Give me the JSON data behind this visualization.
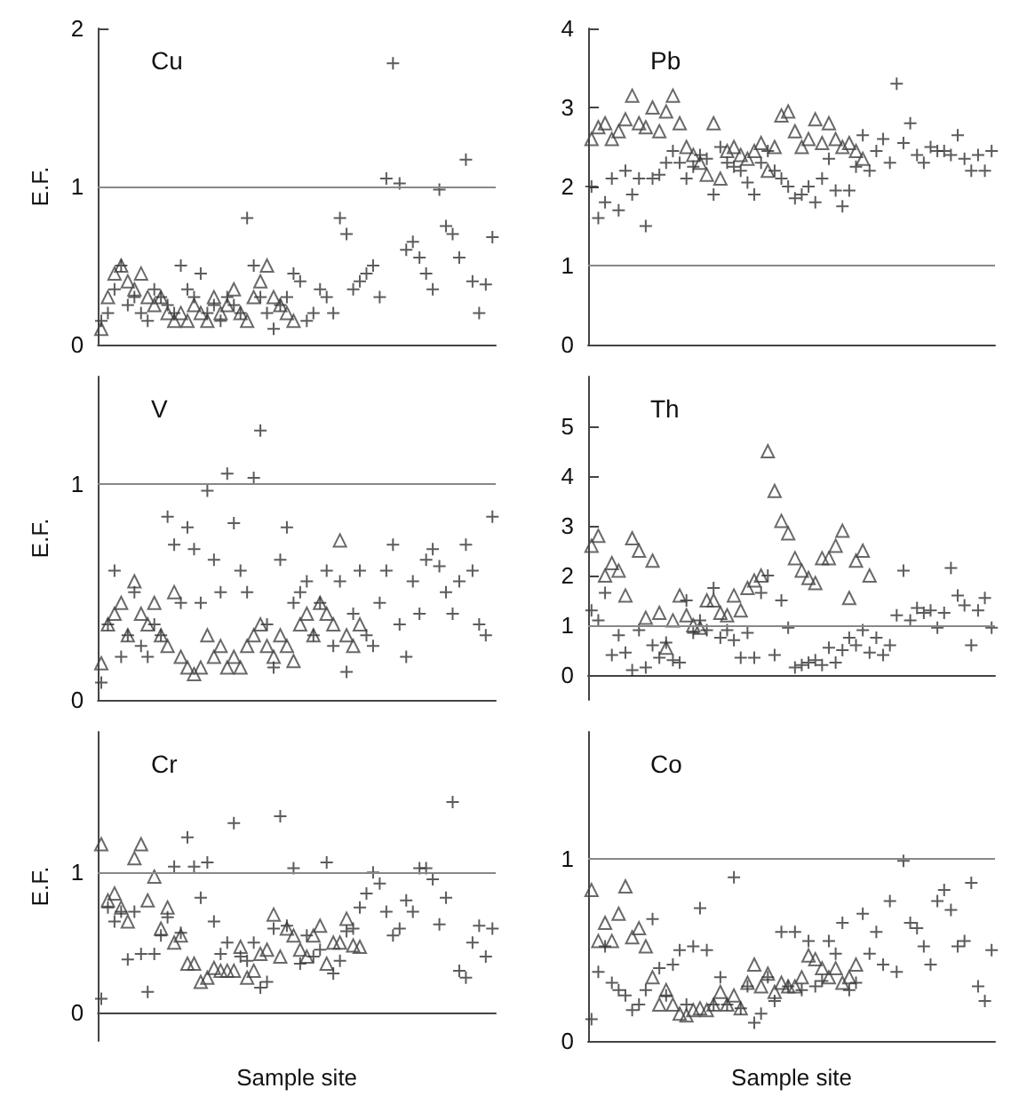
{
  "chart_data": [
    {
      "type": "scatter",
      "title": "Cu",
      "ylabel": "E.F.",
      "categories": [
        null,
        null,
        null,
        null,
        null,
        null,
        null,
        null,
        null,
        null,
        null,
        null,
        null,
        null,
        null,
        null,
        null,
        null,
        null,
        null,
        null,
        null,
        null,
        null,
        null,
        null,
        null,
        null,
        null,
        null,
        null,
        null,
        null,
        null,
        null,
        null,
        null,
        null,
        null,
        null,
        null,
        null,
        null,
        null,
        null,
        null,
        null,
        null,
        null,
        null,
        null,
        null,
        null,
        null,
        null,
        null,
        null,
        null,
        null,
        null
      ],
      "ylim": [
        0,
        2
      ],
      "yticks": [
        0,
        1,
        2
      ],
      "tick_labels": "y",
      "grid": false,
      "ref_lines": [
        {
          "axis": "y",
          "value": 1,
          "color": "#888888"
        }
      ],
      "series": [
        {
          "marker": "triangle",
          "color": "#444444",
          "values": [
            0.1,
            0.3,
            0.45,
            0.5,
            0.4,
            0.35,
            0.45,
            0.3,
            0.25,
            0.3,
            0.2,
            0.15,
            0.2,
            0.15,
            0.25,
            0.2,
            0.15,
            0.3,
            0.2,
            0.25,
            0.35,
            0.2,
            0.15,
            0.3,
            0.4,
            0.5,
            0.3,
            0.25,
            0.2,
            0.15,
            null,
            null,
            null,
            null,
            null,
            null,
            null,
            null,
            null,
            null,
            null,
            null,
            null,
            null,
            null,
            null,
            null,
            null,
            null,
            null,
            null,
            null,
            null,
            null,
            null,
            null,
            null,
            null,
            null,
            null
          ]
        },
        {
          "marker": "cross",
          "color": "#333333",
          "values": [
            0.15,
            0.2,
            0.35,
            0.5,
            0.25,
            0.3,
            0.2,
            0.15,
            0.35,
            0.3,
            0.25,
            0.2,
            0.5,
            0.35,
            0.3,
            0.45,
            0.2,
            0.25,
            0.15,
            0.3,
            0.25,
            0.2,
            0.8,
            0.5,
            0.3,
            0.2,
            0.1,
            0.25,
            0.3,
            0.45,
            0.4,
            0.15,
            0.2,
            0.35,
            0.3,
            0.2,
            0.8,
            0.7,
            0.35,
            0.4,
            0.45,
            0.5,
            0.3,
            1.05,
            1.78,
            1.02,
            0.6,
            0.65,
            0.55,
            0.45,
            0.35,
            0.98,
            0.75,
            0.7,
            0.55,
            1.17,
            0.4,
            0.2,
            0.38,
            0.68
          ]
        }
      ]
    },
    {
      "type": "scatter",
      "title": "Pb",
      "categories": [
        null,
        null,
        null,
        null,
        null,
        null,
        null,
        null,
        null,
        null,
        null,
        null,
        null,
        null,
        null,
        null,
        null,
        null,
        null,
        null,
        null,
        null,
        null,
        null,
        null,
        null,
        null,
        null,
        null,
        null,
        null,
        null,
        null,
        null,
        null,
        null,
        null,
        null,
        null,
        null,
        null,
        null,
        null,
        null,
        null,
        null,
        null,
        null,
        null,
        null,
        null,
        null,
        null,
        null,
        null,
        null,
        null,
        null,
        null,
        null
      ],
      "ylim": [
        0,
        4
      ],
      "yticks": [
        0,
        1,
        2,
        3,
        4
      ],
      "tick_labels": "y",
      "grid": false,
      "ref_lines": [
        {
          "axis": "y",
          "value": 1,
          "color": "#888888"
        }
      ],
      "series": [
        {
          "marker": "triangle",
          "color": "#444444",
          "values": [
            2.6,
            2.75,
            2.8,
            2.6,
            2.7,
            2.85,
            3.15,
            2.8,
            2.75,
            3.0,
            2.7,
            2.95,
            3.15,
            2.8,
            2.5,
            2.4,
            2.3,
            2.15,
            2.8,
            2.1,
            2.45,
            2.5,
            2.4,
            2.35,
            2.45,
            2.55,
            2.2,
            2.5,
            2.9,
            2.95,
            2.7,
            2.5,
            2.6,
            2.85,
            2.55,
            2.8,
            2.6,
            2.5,
            2.55,
            2.45,
            2.35,
            null,
            null,
            null,
            null,
            null,
            null,
            null,
            null,
            null,
            null,
            null,
            null,
            null,
            null,
            null,
            null,
            null,
            null,
            null
          ]
        },
        {
          "marker": "cross",
          "color": "#333333",
          "values": [
            2.0,
            1.6,
            1.8,
            2.1,
            1.7,
            2.2,
            1.9,
            2.1,
            1.5,
            2.1,
            2.15,
            2.3,
            2.45,
            2.3,
            2.1,
            2.25,
            2.4,
            2.35,
            1.9,
            2.5,
            2.3,
            2.25,
            2.2,
            2.05,
            1.9,
            2.3,
            2.45,
            2.2,
            2.1,
            2.0,
            1.85,
            1.9,
            2.0,
            1.8,
            2.1,
            2.35,
            1.95,
            1.75,
            1.95,
            2.25,
            2.65,
            2.2,
            2.45,
            2.6,
            2.3,
            3.3,
            2.55,
            2.8,
            2.4,
            2.3,
            2.5,
            2.45,
            2.45,
            2.4,
            2.65,
            2.35,
            2.2,
            2.4,
            2.2,
            2.45
          ]
        }
      ]
    },
    {
      "type": "scatter",
      "title": "V",
      "ylabel": "E.F.",
      "categories": [
        null,
        null,
        null,
        null,
        null,
        null,
        null,
        null,
        null,
        null,
        null,
        null,
        null,
        null,
        null,
        null,
        null,
        null,
        null,
        null,
        null,
        null,
        null,
        null,
        null,
        null,
        null,
        null,
        null,
        null,
        null,
        null,
        null,
        null,
        null,
        null,
        null,
        null,
        null,
        null,
        null,
        null,
        null,
        null,
        null,
        null,
        null,
        null,
        null,
        null,
        null,
        null,
        null,
        null,
        null,
        null,
        null,
        null,
        null,
        null
      ],
      "ylim": [
        0,
        1.5
      ],
      "yticks": [
        0,
        1
      ],
      "tick_labels": "y",
      "grid": false,
      "ref_lines": [
        {
          "axis": "y",
          "value": 1,
          "color": "#888888"
        }
      ],
      "series": [
        {
          "marker": "triangle",
          "color": "#444444",
          "values": [
            0.17,
            0.35,
            0.4,
            0.45,
            0.3,
            0.55,
            0.4,
            0.35,
            0.45,
            0.3,
            0.25,
            0.5,
            0.2,
            0.15,
            0.12,
            0.15,
            0.3,
            0.2,
            0.25,
            0.15,
            0.2,
            0.15,
            0.25,
            0.3,
            0.35,
            0.25,
            0.2,
            0.3,
            0.25,
            0.18,
            0.35,
            0.4,
            0.3,
            0.45,
            0.4,
            0.35,
            0.74,
            0.3,
            0.25,
            0.35,
            null,
            null,
            null,
            null,
            null,
            null,
            null,
            null,
            null,
            null,
            null,
            null,
            null,
            null,
            null,
            null,
            null,
            null,
            null,
            null
          ]
        },
        {
          "marker": "cross",
          "color": "#333333",
          "values": [
            0.08,
            0.35,
            0.6,
            0.2,
            0.3,
            0.5,
            0.25,
            0.2,
            0.35,
            0.3,
            0.85,
            0.72,
            0.45,
            0.8,
            0.7,
            0.45,
            0.97,
            0.65,
            0.5,
            1.05,
            0.82,
            0.6,
            0.5,
            1.03,
            1.25,
            0.35,
            0.15,
            0.65,
            0.8,
            0.45,
            0.5,
            0.55,
            0.3,
            0.45,
            0.6,
            0.25,
            0.55,
            0.13,
            0.4,
            0.6,
            0.3,
            0.25,
            0.45,
            0.6,
            0.72,
            0.35,
            0.2,
            0.55,
            0.4,
            0.65,
            0.7,
            0.62,
            0.5,
            0.4,
            0.55,
            0.72,
            0.6,
            0.35,
            0.3,
            0.85
          ]
        }
      ]
    },
    {
      "type": "scatter",
      "title": "Th",
      "categories": [
        null,
        null,
        null,
        null,
        null,
        null,
        null,
        null,
        null,
        null,
        null,
        null,
        null,
        null,
        null,
        null,
        null,
        null,
        null,
        null,
        null,
        null,
        null,
        null,
        null,
        null,
        null,
        null,
        null,
        null,
        null,
        null,
        null,
        null,
        null,
        null,
        null,
        null,
        null,
        null,
        null,
        null,
        null,
        null,
        null,
        null,
        null,
        null,
        null,
        null,
        null,
        null,
        null,
        null,
        null,
        null,
        null,
        null,
        null,
        null
      ],
      "ylim": [
        -0.5,
        6
      ],
      "yticks": [
        0,
        1,
        2,
        3,
        4,
        5
      ],
      "tick_labels": "y",
      "grid": false,
      "ref_lines": [
        {
          "axis": "y",
          "value": 1,
          "color": "#888888"
        }
      ],
      "series": [
        {
          "marker": "triangle",
          "color": "#444444",
          "values": [
            2.6,
            2.8,
            2.0,
            2.25,
            2.1,
            1.6,
            2.75,
            2.5,
            1.15,
            2.3,
            1.25,
            0.55,
            1.1,
            1.6,
            1.2,
            1.0,
            0.95,
            1.5,
            1.5,
            1.25,
            1.2,
            1.6,
            1.3,
            1.75,
            1.9,
            2.0,
            4.5,
            3.7,
            3.1,
            2.85,
            2.35,
            2.1,
            1.95,
            1.85,
            2.35,
            2.35,
            2.6,
            2.9,
            1.55,
            2.3,
            2.5,
            2.0,
            null,
            null,
            null,
            null,
            null,
            null,
            null,
            null,
            null,
            null,
            null,
            null,
            null,
            null,
            null,
            null,
            null,
            null
          ]
        },
        {
          "marker": "cross",
          "color": "#333333",
          "values": [
            1.3,
            1.1,
            1.65,
            0.4,
            0.8,
            0.45,
            0.1,
            0.9,
            0.15,
            0.6,
            0.35,
            0.65,
            0.3,
            0.25,
            1.5,
            0.85,
            1.1,
            0.9,
            1.75,
            0.75,
            0.9,
            0.7,
            0.35,
            0.85,
            0.35,
            1.65,
            2.0,
            0.4,
            1.5,
            0.95,
            0.15,
            0.2,
            0.25,
            0.3,
            0.2,
            0.55,
            0.25,
            0.5,
            0.75,
            0.6,
            0.9,
            0.45,
            0.75,
            0.4,
            0.6,
            1.2,
            2.1,
            1.1,
            1.35,
            1.25,
            1.3,
            0.95,
            1.25,
            2.15,
            1.6,
            1.4,
            0.6,
            1.3,
            1.55,
            0.95
          ]
        }
      ]
    },
    {
      "type": "scatter",
      "title": "Cr",
      "ylabel": "E.F.",
      "xlabel": "Sample site",
      "categories": [
        null,
        null,
        null,
        null,
        null,
        null,
        null,
        null,
        null,
        null,
        null,
        null,
        null,
        null,
        null,
        null,
        null,
        null,
        null,
        null,
        null,
        null,
        null,
        null,
        null,
        null,
        null,
        null,
        null,
        null,
        null,
        null,
        null,
        null,
        null,
        null,
        null,
        null,
        null,
        null,
        null,
        null,
        null,
        null,
        null,
        null,
        null,
        null,
        null,
        null,
        null,
        null,
        null,
        null,
        null,
        null,
        null,
        null,
        null,
        null
      ],
      "ylim": [
        -0.2,
        2
      ],
      "yticks": [
        0,
        1
      ],
      "tick_labels": "y",
      "grid": false,
      "ref_lines": [
        {
          "axis": "y",
          "value": 1,
          "color": "#888888"
        }
      ],
      "series": [
        {
          "marker": "triangle",
          "color": "#444444",
          "values": [
            1.2,
            0.8,
            0.85,
            0.75,
            0.65,
            1.1,
            1.2,
            0.8,
            0.97,
            0.6,
            0.75,
            0.5,
            0.55,
            0.35,
            0.35,
            0.22,
            0.25,
            0.32,
            0.3,
            0.3,
            0.3,
            0.47,
            0.25,
            0.3,
            0.42,
            0.45,
            0.7,
            0.4,
            0.6,
            0.55,
            0.45,
            0.4,
            0.55,
            0.62,
            0.35,
            0.5,
            0.5,
            0.67,
            0.48,
            0.47,
            null,
            null,
            null,
            null,
            null,
            null,
            null,
            null,
            null,
            null,
            null,
            null,
            null,
            null,
            null,
            null,
            null,
            null,
            null,
            null
          ]
        },
        {
          "marker": "cross",
          "color": "#333333",
          "values": [
            0.1,
            0.75,
            0.65,
            0.72,
            0.38,
            0.72,
            0.42,
            0.15,
            0.42,
            0.55,
            0.68,
            1.04,
            0.57,
            1.25,
            1.04,
            0.82,
            1.07,
            0.65,
            0.42,
            0.5,
            1.35,
            0.4,
            0.37,
            0.5,
            0.18,
            0.22,
            0.6,
            1.4,
            0.62,
            1.03,
            0.35,
            0.55,
            0.4,
            0.45,
            1.07,
            0.28,
            0.37,
            0.58,
            0.6,
            0.75,
            0.85,
            1.0,
            0.92,
            0.72,
            0.55,
            0.6,
            0.8,
            0.72,
            1.03,
            1.03,
            0.95,
            0.63,
            0.82,
            1.5,
            0.3,
            0.25,
            0.5,
            0.62,
            0.4,
            0.6
          ]
        }
      ]
    },
    {
      "type": "scatter",
      "title": "Co",
      "xlabel": "Sample site",
      "categories": [
        null,
        null,
        null,
        null,
        null,
        null,
        null,
        null,
        null,
        null,
        null,
        null,
        null,
        null,
        null,
        null,
        null,
        null,
        null,
        null,
        null,
        null,
        null,
        null,
        null,
        null,
        null,
        null,
        null,
        null,
        null,
        null,
        null,
        null,
        null,
        null,
        null,
        null,
        null,
        null,
        null,
        null,
        null,
        null,
        null,
        null,
        null,
        null,
        null,
        null,
        null,
        null,
        null,
        null,
        null,
        null,
        null,
        null,
        null,
        null
      ],
      "ylim": [
        0,
        1.7
      ],
      "yticks": [
        0,
        1
      ],
      "tick_labels": "y",
      "grid": false,
      "ref_lines": [
        {
          "axis": "y",
          "value": 1,
          "color": "#888888"
        }
      ],
      "series": [
        {
          "marker": "triangle",
          "color": "#444444",
          "values": [
            0.83,
            0.55,
            0.65,
            0.55,
            0.7,
            0.85,
            0.57,
            0.62,
            0.52,
            0.35,
            0.2,
            0.28,
            0.2,
            0.15,
            0.14,
            0.17,
            0.18,
            0.17,
            0.2,
            0.27,
            0.2,
            0.25,
            0.18,
            0.32,
            0.42,
            0.3,
            0.37,
            0.27,
            0.32,
            0.3,
            0.3,
            0.35,
            0.47,
            0.45,
            0.4,
            0.35,
            0.4,
            0.32,
            0.35,
            0.42,
            null,
            null,
            null,
            null,
            null,
            null,
            null,
            null,
            null,
            null,
            null,
            null,
            null,
            null,
            null,
            null,
            null,
            null,
            null,
            null
          ]
        },
        {
          "marker": "cross",
          "color": "#333333",
          "values": [
            0.12,
            0.38,
            0.52,
            0.32,
            0.28,
            0.25,
            0.17,
            0.2,
            0.28,
            0.67,
            0.4,
            0.25,
            0.42,
            0.5,
            0.2,
            0.52,
            0.73,
            0.5,
            0.2,
            0.35,
            0.2,
            0.9,
            0.18,
            0.3,
            0.1,
            0.15,
            0.35,
            0.22,
            0.6,
            0.3,
            0.6,
            0.28,
            0.55,
            0.3,
            0.33,
            0.55,
            0.48,
            0.65,
            0.28,
            0.32,
            0.7,
            0.48,
            0.6,
            0.42,
            0.77,
            0.38,
            0.99,
            0.65,
            0.62,
            0.52,
            0.42,
            0.77,
            0.83,
            0.72,
            0.52,
            0.55,
            0.87,
            0.3,
            0.22,
            0.5
          ]
        }
      ]
    }
  ]
}
